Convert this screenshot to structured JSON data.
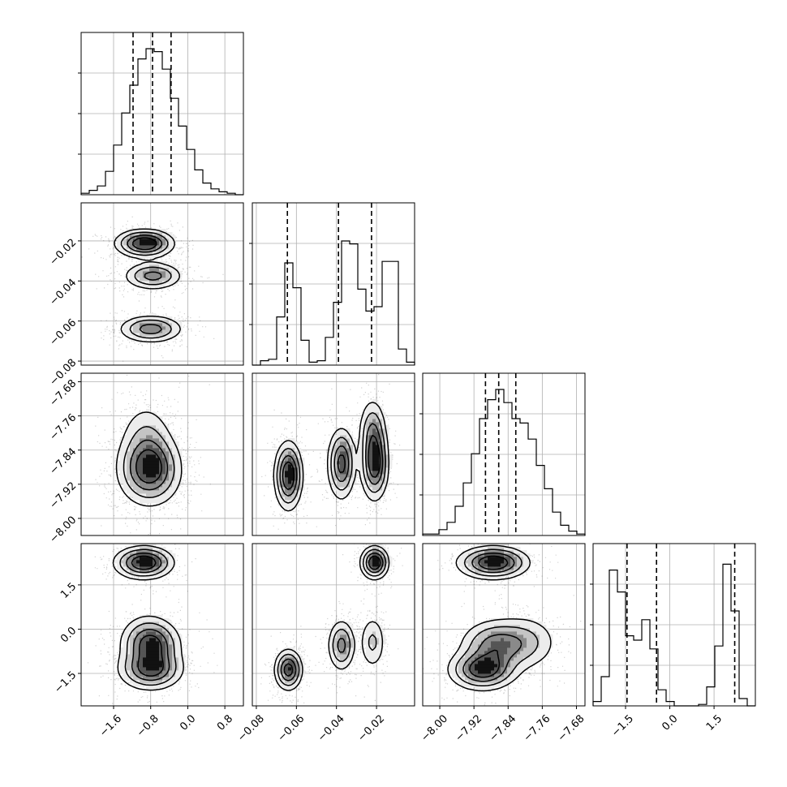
{
  "chart_data": {
    "type": "corner",
    "title": "",
    "parameters": [
      {
        "index": 0,
        "range": [
          -2.3,
          1.2
        ],
        "ticks": [
          -1.6,
          -0.8,
          0.0,
          0.8
        ],
        "tick_labels": [
          "−1.6",
          "−0.8",
          "0.0",
          "0.8"
        ],
        "quantiles": [
          -1.18,
          -0.76,
          -0.36
        ],
        "histogram": [
          0.01,
          0.03,
          0.06,
          0.16,
          0.34,
          0.56,
          0.75,
          0.93,
          1.0,
          0.98,
          0.86,
          0.66,
          0.47,
          0.31,
          0.17,
          0.08,
          0.04,
          0.02,
          0.01,
          0.0
        ]
      },
      {
        "index": 1,
        "range": [
          -0.082,
          -0.001
        ],
        "ticks": [
          -0.08,
          -0.06,
          -0.04,
          -0.02
        ],
        "tick_labels": [
          "−0.08",
          "−0.06",
          "−0.04",
          "−0.02"
        ],
        "quantiles": [
          -0.0645,
          -0.039,
          -0.0225
        ],
        "histogram": [
          0.0,
          0.03,
          0.04,
          0.33,
          0.7,
          0.53,
          0.17,
          0.02,
          0.03,
          0.19,
          0.43,
          0.85,
          0.83,
          0.52,
          0.37,
          0.4,
          0.71,
          0.71,
          0.11,
          0.02
        ]
      },
      {
        "index": 2,
        "range": [
          -8.04,
          -7.66
        ],
        "ticks": [
          -8.0,
          -7.92,
          -7.84,
          -7.76,
          -7.68
        ],
        "tick_labels": [
          "−8.00",
          "−7.92",
          "−7.84",
          "−7.76",
          "−7.68"
        ],
        "quantiles": [
          -7.893,
          -7.862,
          -7.822
        ],
        "histogram": [
          0.01,
          0.01,
          0.04,
          0.09,
          0.2,
          0.36,
          0.56,
          0.8,
          0.93,
          1.0,
          0.91,
          0.8,
          0.77,
          0.66,
          0.48,
          0.32,
          0.16,
          0.07,
          0.03,
          0.01
        ]
      },
      {
        "index": 3,
        "range": [
          -2.6,
          2.9
        ],
        "ticks": [
          -1.5,
          0.0,
          1.5
        ],
        "tick_labels": [
          "−1.5",
          "0.0",
          "1.5"
        ],
        "quantiles": [
          -1.45,
          -0.45,
          2.2
        ],
        "histogram": [
          0.03,
          0.2,
          0.93,
          0.78,
          0.48,
          0.45,
          0.59,
          0.39,
          0.11,
          0.03,
          0.0,
          0.0,
          0.0,
          0.01,
          0.13,
          0.41,
          0.97,
          0.65,
          0.05,
          0.0
        ]
      }
    ],
    "clusters": [
      {
        "means": [
          -0.95,
          -0.021,
          -7.875,
          2.25
        ],
        "sds": [
          0.32,
          0.0035,
          0.042,
          0.28
        ],
        "weight": 0.28
      },
      {
        "means": [
          -0.75,
          -0.0375,
          -7.872,
          -0.55
        ],
        "sds": [
          0.32,
          0.0035,
          0.042,
          0.45
        ],
        "weight": 0.26
      },
      {
        "means": [
          -0.9,
          -0.022,
          -7.8,
          -0.45
        ],
        "sds": [
          0.3,
          0.0035,
          0.042,
          0.5
        ],
        "weight": 0.16
      },
      {
        "means": [
          -0.8,
          -0.064,
          -7.9,
          -1.38
        ],
        "sds": [
          0.35,
          0.0035,
          0.04,
          0.35
        ],
        "weight": 0.3
      }
    ],
    "grid": true
  }
}
